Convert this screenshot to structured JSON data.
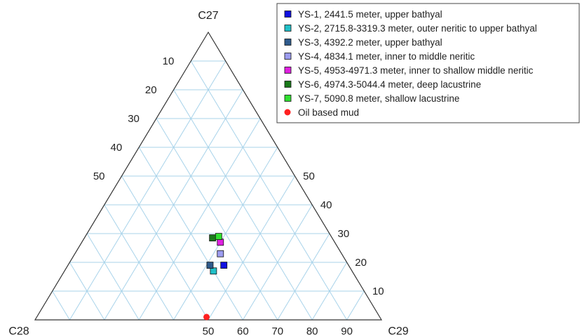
{
  "chart_data": {
    "type": "ternary",
    "vertices": {
      "top": "C27",
      "left": "C28",
      "right": "C29"
    },
    "ticks": {
      "left_edge_C28": [
        10,
        20,
        30,
        40,
        50
      ],
      "right_edge_C27": [
        50,
        40,
        30,
        20,
        10
      ],
      "bottom_edge_C29": [
        50,
        60,
        70,
        80,
        90
      ]
    },
    "series": [
      {
        "name": "YS-1, 2441.5 meter, upper bathyal",
        "color": "#1010e0",
        "marker": "square",
        "points": [
          {
            "C27": 19,
            "C28": 36,
            "C29": 45
          }
        ]
      },
      {
        "name": "YS-2, 2715.8-3319.3 meter, outer neritic to upper bathyal",
        "color": "#20c0c8",
        "marker": "square",
        "points": [
          {
            "C27": 17,
            "C28": 40,
            "C29": 43
          }
        ]
      },
      {
        "name": "YS-3, 4392.2 meter, upper bathyal",
        "color": "#2f5b8c",
        "marker": "square",
        "points": [
          {
            "C27": 19,
            "C28": 40,
            "C29": 41
          }
        ]
      },
      {
        "name": "YS-4, 4834.1 meter, inner to middle neritic",
        "color": "#9c9cf0",
        "marker": "square",
        "points": [
          {
            "C27": 23,
            "C28": 35,
            "C29": 42
          }
        ]
      },
      {
        "name": "YS-5, 4953-4971.3 meter, inner to shallow middle neritic",
        "color": "#e020e0",
        "marker": "square",
        "points": [
          {
            "C27": 27,
            "C28": 33,
            "C29": 40
          }
        ]
      },
      {
        "name": "YS-6, 4974.3-5044.4 meter, deep lacustrine",
        "color": "#1a7a1a",
        "marker": "square",
        "points": [
          {
            "C27": 28.5,
            "C28": 34.5,
            "C29": 37
          }
        ]
      },
      {
        "name": "YS-7, 5090.8 meter, shallow lacustrine",
        "color": "#30e030",
        "marker": "square",
        "points": [
          {
            "C27": 29,
            "C28": 32.5,
            "C29": 38.5
          }
        ]
      },
      {
        "name": "Oil based mud",
        "color": "#ff2020",
        "marker": "circle",
        "points": [
          {
            "C27": 1,
            "C28": 50,
            "C29": 49
          }
        ]
      }
    ],
    "legend_position": "top-right",
    "grid": true
  }
}
